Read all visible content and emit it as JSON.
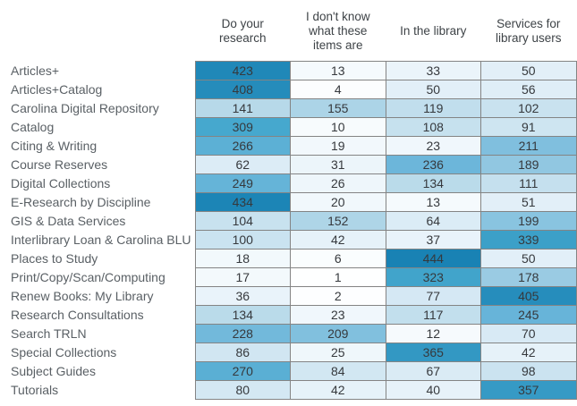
{
  "chart_data": {
    "type": "heatmap",
    "title": "",
    "columns": [
      "Do your research",
      "I don't know what these items are",
      "In the library",
      "Services for library users"
    ],
    "rows": [
      "Articles+",
      "Articles+Catalog",
      "Carolina Digital Repository",
      "Catalog",
      "Citing & Writing",
      "Course Reserves",
      "Digital Collections",
      "E-Research by Discipline",
      "GIS & Data Services",
      "Interlibrary Loan & Carolina BLU",
      "Places to Study",
      "Print/Copy/Scan/Computing",
      "Renew Books: My Library",
      "Research Consultations",
      "Search TRLN",
      "Special Collections",
      "Subject Guides",
      "Tutorials"
    ],
    "values": [
      [
        423,
        13,
        33,
        50
      ],
      [
        408,
        4,
        50,
        56
      ],
      [
        141,
        155,
        119,
        102
      ],
      [
        309,
        10,
        108,
        91
      ],
      [
        266,
        19,
        23,
        211
      ],
      [
        62,
        31,
        236,
        189
      ],
      [
        249,
        26,
        134,
        111
      ],
      [
        434,
        20,
        13,
        51
      ],
      [
        104,
        152,
        64,
        199
      ],
      [
        100,
        42,
        37,
        339
      ],
      [
        18,
        6,
        444,
        50
      ],
      [
        17,
        1,
        323,
        178
      ],
      [
        36,
        2,
        77,
        405
      ],
      [
        134,
        23,
        117,
        245
      ],
      [
        228,
        209,
        12,
        70
      ],
      [
        86,
        25,
        365,
        42
      ],
      [
        270,
        84,
        67,
        98
      ],
      [
        80,
        42,
        40,
        357
      ]
    ],
    "value_range": [
      1,
      444
    ],
    "legend": "none",
    "grid": "on",
    "color_scale": {
      "anchors": [
        [
          0,
          "#ffffff"
        ],
        [
          13,
          "#f5fafd"
        ],
        [
          62,
          "#dcecf6"
        ],
        [
          141,
          "#b7d9e9"
        ],
        [
          236,
          "#6cb6da"
        ],
        [
          309,
          "#46a8ce"
        ],
        [
          444,
          "#1982b4"
        ]
      ]
    }
  },
  "colors": {
    "background": "#ffffff",
    "grid_border": "#848484",
    "header_text": "#3e4347",
    "label_text": "#5a6065",
    "value_text": "#36393d",
    "scale_min_color": "#ffffff",
    "scale_max_color": "#1982b4"
  }
}
